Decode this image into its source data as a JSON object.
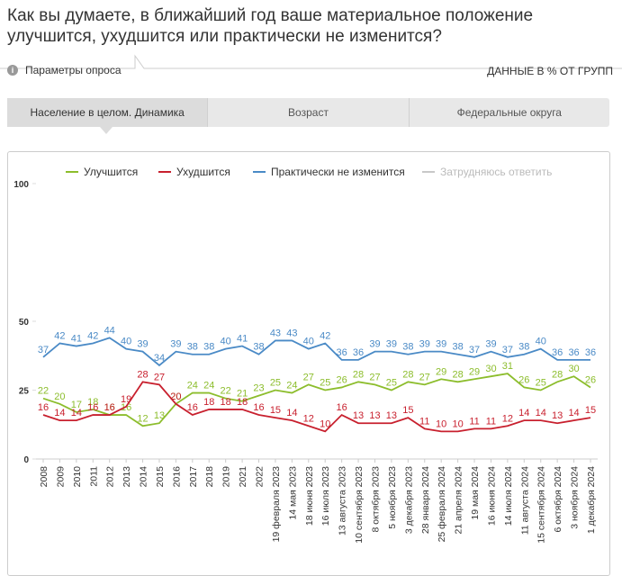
{
  "header": {
    "title": "Как вы думаете, в ближайший год ваше материальное положение улучшится, ухудшится или практически не изменится?",
    "params": "Параметры опроса",
    "units": "ДАННЫЕ В % ОТ ГРУПП"
  },
  "tabs": [
    "Население в целом. Динамика",
    "Возраст",
    "Федеральные округа"
  ],
  "chart_data": {
    "type": "line",
    "categories": [
      "2008",
      "2009",
      "2010",
      "2011",
      "2012",
      "2013",
      "2014",
      "2015",
      "2016",
      "2017",
      "2018",
      "2019",
      "2021",
      "2022",
      "19 февраля 2023",
      "14 мая 2023",
      "18 июня 2023",
      "16 июля 2023",
      "13 августа 2023",
      "10 сентября 2023",
      "8 октября 2023",
      "5 ноября 2023",
      "3 декабря 2023",
      "28 января 2024",
      "25 февраля 2024",
      "21 апреля 2024",
      "19 мая 2024",
      "16 июня 2024",
      "14 июля 2024",
      "11 августа 2024",
      "15 сентября 2024",
      "6 октября 2024",
      "3 ноября 2024",
      "1 декабря 2024"
    ],
    "series": [
      {
        "name": "Улучшится",
        "color": "#8cbd2c",
        "values": [
          22,
          20,
          17,
          18,
          16,
          16,
          12,
          13,
          20,
          24,
          24,
          22,
          21,
          23,
          25,
          24,
          27,
          25,
          26,
          28,
          27,
          25,
          28,
          27,
          29,
          28,
          29,
          30,
          31,
          26,
          25,
          28,
          30,
          26
        ]
      },
      {
        "name": "Ухудшится",
        "color": "#c8202e",
        "values": [
          16,
          14,
          14,
          16,
          16,
          19,
          28,
          27,
          20,
          16,
          18,
          18,
          18,
          16,
          15,
          14,
          12,
          10,
          16,
          13,
          13,
          13,
          15,
          11,
          10,
          10,
          11,
          11,
          12,
          14,
          14,
          13,
          14,
          15
        ]
      },
      {
        "name": "Практически не изменится",
        "color": "#4a8ac6",
        "values": [
          37,
          42,
          41,
          42,
          44,
          40,
          39,
          34,
          39,
          38,
          38,
          40,
          41,
          38,
          43,
          43,
          40,
          42,
          36,
          36,
          39,
          39,
          38,
          39,
          39,
          38,
          37,
          39,
          37,
          38,
          40,
          36,
          36,
          36
        ]
      }
    ],
    "inactive_legend": {
      "name": "Затрудняюсь ответить",
      "color": "#c8c8c8"
    },
    "ylim": [
      0,
      100
    ],
    "yticks": [
      0,
      25,
      50,
      100
    ],
    "grid": false
  }
}
